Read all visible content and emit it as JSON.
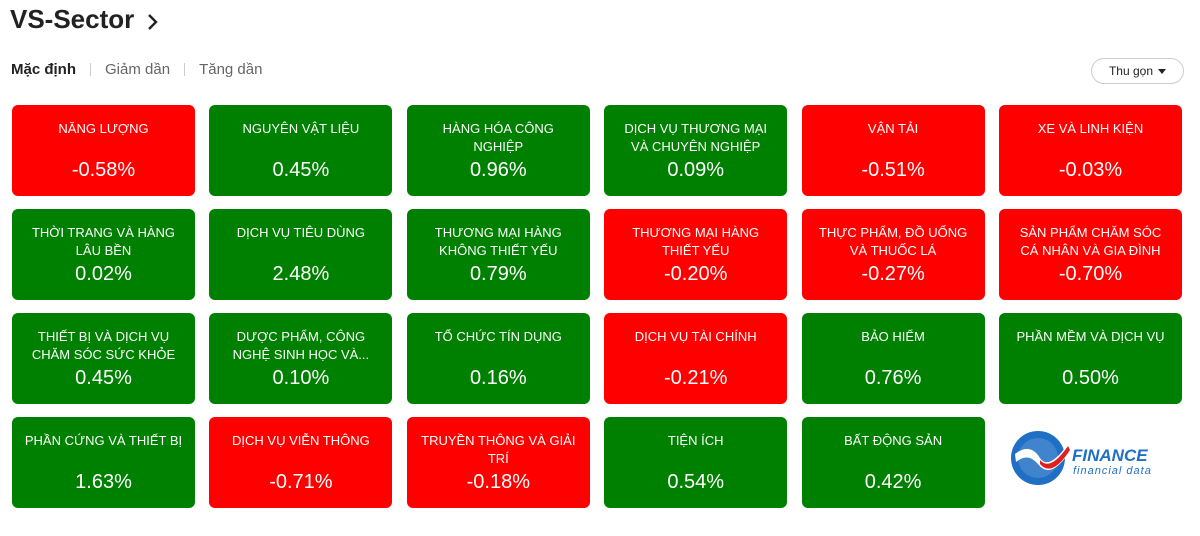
{
  "header": {
    "title": "VS-Sector",
    "tabs": [
      "Mặc định",
      "Giảm dần",
      "Tăng dần"
    ],
    "button": "Thu gọn"
  },
  "tiles": [
    {
      "name": "NĂNG LƯỢNG",
      "change": "-0.58%",
      "color": "#ff0000"
    },
    {
      "name": "NGUYÊN VẬT LIỆU",
      "change": "0.45%",
      "color": "#008000"
    },
    {
      "name": "HÀNG HÓA CÔNG NGHIỆP",
      "change": "0.96%",
      "color": "#008000"
    },
    {
      "name": "DỊCH VỤ THƯƠNG MẠI VÀ CHUYÊN NGHIỆP",
      "change": "0.09%",
      "color": "#008000"
    },
    {
      "name": "VẬN TẢI",
      "change": "-0.51%",
      "color": "#ff0000"
    },
    {
      "name": "XE VÀ LINH KIỆN",
      "change": "-0.03%",
      "color": "#ff0000"
    },
    {
      "name": "THỜI TRANG VÀ HÀNG LÂU BỀN",
      "change": "0.02%",
      "color": "#008000"
    },
    {
      "name": "DỊCH VỤ TIÊU DÙNG",
      "change": "2.48%",
      "color": "#008000"
    },
    {
      "name": "THƯƠNG MẠI HÀNG KHÔNG THIẾT YẾU",
      "change": "0.79%",
      "color": "#008000"
    },
    {
      "name": "THƯƠNG MẠI HÀNG THIẾT YẾU",
      "change": "-0.20%",
      "color": "#ff0000"
    },
    {
      "name": "THỰC PHẨM, ĐỒ UỐNG VÀ THUỐC LÁ",
      "change": "-0.27%",
      "color": "#ff0000"
    },
    {
      "name": "SẢN PHẨM CHĂM SÓC CÁ NHÂN VÀ GIA ĐÌNH",
      "change": "-0.70%",
      "color": "#ff0000"
    },
    {
      "name": "THIẾT BỊ VÀ DỊCH VỤ CHĂM SÓC SỨC KHỎE",
      "change": "0.45%",
      "color": "#008000"
    },
    {
      "name": "DƯỢC PHẨM, CÔNG NGHỆ SINH HỌC VÀ...",
      "change": "0.10%",
      "color": "#008000"
    },
    {
      "name": "TỔ CHỨC TÍN DỤNG",
      "change": "0.16%",
      "color": "#008000"
    },
    {
      "name": "DỊCH VỤ TÀI CHÍNH",
      "change": "-0.21%",
      "color": "#ff0000"
    },
    {
      "name": "BẢO HIỂM",
      "change": "0.76%",
      "color": "#008000"
    },
    {
      "name": "PHẦN MỀM VÀ DỊCH VỤ",
      "change": "0.50%",
      "color": "#008000"
    },
    {
      "name": "PHẦN CỨNG VÀ THIẾT BỊ",
      "change": "1.63%",
      "color": "#008000"
    },
    {
      "name": "DỊCH VỤ VIỄN THÔNG",
      "change": "-0.71%",
      "color": "#ff0000"
    },
    {
      "name": "TRUYỀN THÔNG VÀ GIẢI TRÍ",
      "change": "-0.18%",
      "color": "#ff0000"
    },
    {
      "name": "TIỆN ÍCH",
      "change": "0.54%",
      "color": "#008000"
    },
    {
      "name": "BẤT ĐỘNG SẢN",
      "change": "0.42%",
      "color": "#008000"
    }
  ],
  "logo": {
    "brand": "FINANCE",
    "tagline": "financial data"
  }
}
